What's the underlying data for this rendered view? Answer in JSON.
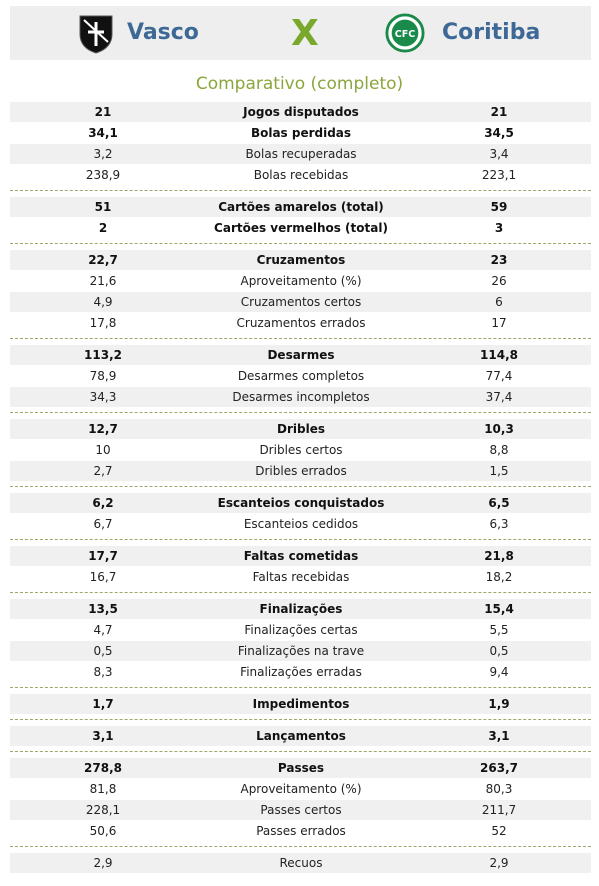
{
  "header": {
    "home": {
      "name": "Vasco",
      "crest_color": "#111111"
    },
    "vs_label": "X",
    "away": {
      "name": "Coritiba",
      "crest_color": "#1a8a4a"
    }
  },
  "subtitle": "Comparativo (completo)",
  "groups": [
    {
      "rows": [
        {
          "home": "21",
          "label": "Jogos disputados",
          "away": "21",
          "bold": true
        },
        {
          "home": "34,1",
          "label": "Bolas perdidas",
          "away": "34,5",
          "bold": true
        },
        {
          "home": "3,2",
          "label": "Bolas recuperadas",
          "away": "3,4",
          "bold": false
        },
        {
          "home": "238,9",
          "label": "Bolas recebidas",
          "away": "223,1",
          "bold": false
        }
      ]
    },
    {
      "rows": [
        {
          "home": "51",
          "label": "Cartões amarelos (total)",
          "away": "59",
          "bold": true
        },
        {
          "home": "2",
          "label": "Cartões vermelhos (total)",
          "away": "3",
          "bold": true
        }
      ]
    },
    {
      "rows": [
        {
          "home": "22,7",
          "label": "Cruzamentos",
          "away": "23",
          "bold": true
        },
        {
          "home": "21,6",
          "label": "Aproveitamento (%)",
          "away": "26",
          "bold": false
        },
        {
          "home": "4,9",
          "label": "Cruzamentos certos",
          "away": "6",
          "bold": false
        },
        {
          "home": "17,8",
          "label": "Cruzamentos errados",
          "away": "17",
          "bold": false
        }
      ]
    },
    {
      "rows": [
        {
          "home": "113,2",
          "label": "Desarmes",
          "away": "114,8",
          "bold": true
        },
        {
          "home": "78,9",
          "label": "Desarmes completos",
          "away": "77,4",
          "bold": false
        },
        {
          "home": "34,3",
          "label": "Desarmes incompletos",
          "away": "37,4",
          "bold": false
        }
      ]
    },
    {
      "rows": [
        {
          "home": "12,7",
          "label": "Dribles",
          "away": "10,3",
          "bold": true
        },
        {
          "home": "10",
          "label": "Dribles certos",
          "away": "8,8",
          "bold": false
        },
        {
          "home": "2,7",
          "label": "Dribles errados",
          "away": "1,5",
          "bold": false
        }
      ]
    },
    {
      "rows": [
        {
          "home": "6,2",
          "label": "Escanteios conquistados",
          "away": "6,5",
          "bold": true
        },
        {
          "home": "6,7",
          "label": "Escanteios cedidos",
          "away": "6,3",
          "bold": false
        }
      ]
    },
    {
      "rows": [
        {
          "home": "17,7",
          "label": "Faltas cometidas",
          "away": "21,8",
          "bold": true
        },
        {
          "home": "16,7",
          "label": "Faltas recebidas",
          "away": "18,2",
          "bold": false
        }
      ]
    },
    {
      "rows": [
        {
          "home": "13,5",
          "label": "Finalizações",
          "away": "15,4",
          "bold": true
        },
        {
          "home": "4,7",
          "label": "Finalizações certas",
          "away": "5,5",
          "bold": false
        },
        {
          "home": "0,5",
          "label": "Finalizações na trave",
          "away": "0,5",
          "bold": false
        },
        {
          "home": "8,3",
          "label": "Finalizações erradas",
          "away": "9,4",
          "bold": false
        }
      ]
    },
    {
      "rows": [
        {
          "home": "1,7",
          "label": "Impedimentos",
          "away": "1,9",
          "bold": true
        }
      ]
    },
    {
      "rows": [
        {
          "home": "3,1",
          "label": "Lançamentos",
          "away": "3,1",
          "bold": true
        }
      ]
    },
    {
      "rows": [
        {
          "home": "278,8",
          "label": "Passes",
          "away": "263,7",
          "bold": true
        },
        {
          "home": "81,8",
          "label": "Aproveitamento (%)",
          "away": "80,3",
          "bold": false
        },
        {
          "home": "228,1",
          "label": "Passes certos",
          "away": "211,7",
          "bold": false
        },
        {
          "home": "50,6",
          "label": "Passes errados",
          "away": "52",
          "bold": false
        }
      ]
    },
    {
      "rows": [
        {
          "home": "2,9",
          "label": "Recuos",
          "away": "2,9",
          "bold": false
        }
      ]
    }
  ]
}
